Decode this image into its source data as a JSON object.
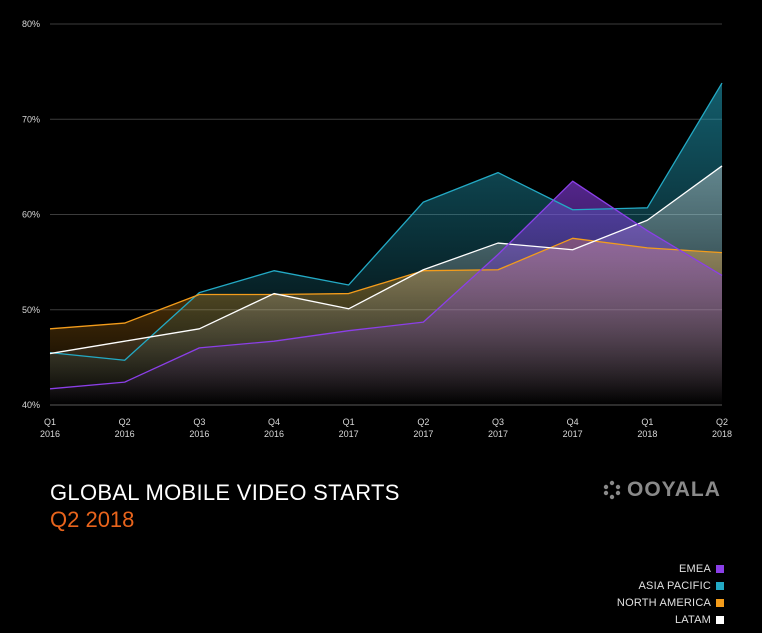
{
  "chart_data": {
    "type": "area",
    "title": "GLOBAL MOBILE VIDEO STARTS",
    "subtitle": "Q2 2018",
    "x": [
      "Q1 2016",
      "Q2 2016",
      "Q3 2016",
      "Q4 2016",
      "Q1 2017",
      "Q2 2017",
      "Q3 2017",
      "Q4 2017",
      "Q1 2018",
      "Q2 2018"
    ],
    "x_ticks": [
      {
        "line1": "Q1",
        "line2": "2016"
      },
      {
        "line1": "Q2",
        "line2": "2016"
      },
      {
        "line1": "Q3",
        "line2": "2016"
      },
      {
        "line1": "Q4",
        "line2": "2016"
      },
      {
        "line1": "Q1",
        "line2": "2017"
      },
      {
        "line1": "Q2",
        "line2": "2017"
      },
      {
        "line1": "Q3",
        "line2": "2017"
      },
      {
        "line1": "Q4",
        "line2": "2017"
      },
      {
        "line1": "Q1",
        "line2": "2018"
      },
      {
        "line1": "Q2",
        "line2": "2018"
      }
    ],
    "y_ticks": [
      "40%",
      "50%",
      "60%",
      "70%",
      "80%"
    ],
    "ylim": [
      40,
      80
    ],
    "grid": true,
    "legend_position": "bottom-right",
    "series": [
      {
        "name": "ASIA PACIFIC",
        "color": "#23a9c4",
        "values": [
          45.5,
          44.7,
          51.8,
          54.1,
          52.6,
          61.3,
          64.4,
          60.5,
          60.7,
          73.8
        ]
      },
      {
        "name": "NORTH AMERICA",
        "color": "#f39c1b",
        "values": [
          48.0,
          48.6,
          51.6,
          51.6,
          51.7,
          54.1,
          54.2,
          57.5,
          56.5,
          56.0
        ]
      },
      {
        "name": "LATAM",
        "color": "#ffffff",
        "values": [
          45.4,
          46.7,
          48.0,
          51.7,
          50.1,
          54.2,
          57.0,
          56.3,
          59.4,
          65.1
        ]
      },
      {
        "name": "EMEA",
        "color": "#8b3fe8",
        "values": [
          41.7,
          42.4,
          46.0,
          46.7,
          47.8,
          48.7,
          55.8,
          63.5,
          58.3,
          53.6
        ]
      }
    ],
    "legend_order": [
      "EMEA",
      "ASIA PACIFIC",
      "NORTH AMERICA",
      "LATAM"
    ]
  },
  "brand": {
    "logo_text": "OOYALA",
    "title_color": "#ffffff",
    "subtitle_color": "#e8641c"
  }
}
